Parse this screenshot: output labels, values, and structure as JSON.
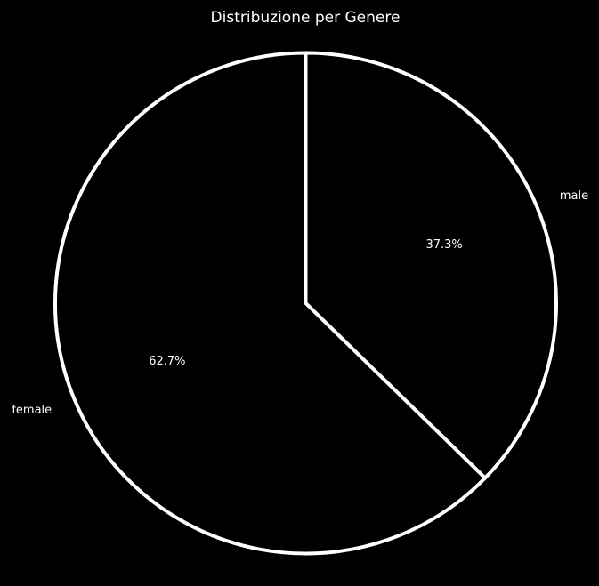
{
  "chart_data": {
    "type": "pie",
    "title": "Distribuzione per Genere",
    "slices": [
      {
        "label": "male",
        "value": 37.3,
        "pct_label": "37.3%"
      },
      {
        "label": "female",
        "value": 62.7,
        "pct_label": "62.7%"
      }
    ],
    "start_angle_deg": 90,
    "direction": "clockwise",
    "background_color": "#000000",
    "slice_fill_color": "#000000",
    "edge_color": "#ffffff",
    "text_color": "#ffffff"
  }
}
